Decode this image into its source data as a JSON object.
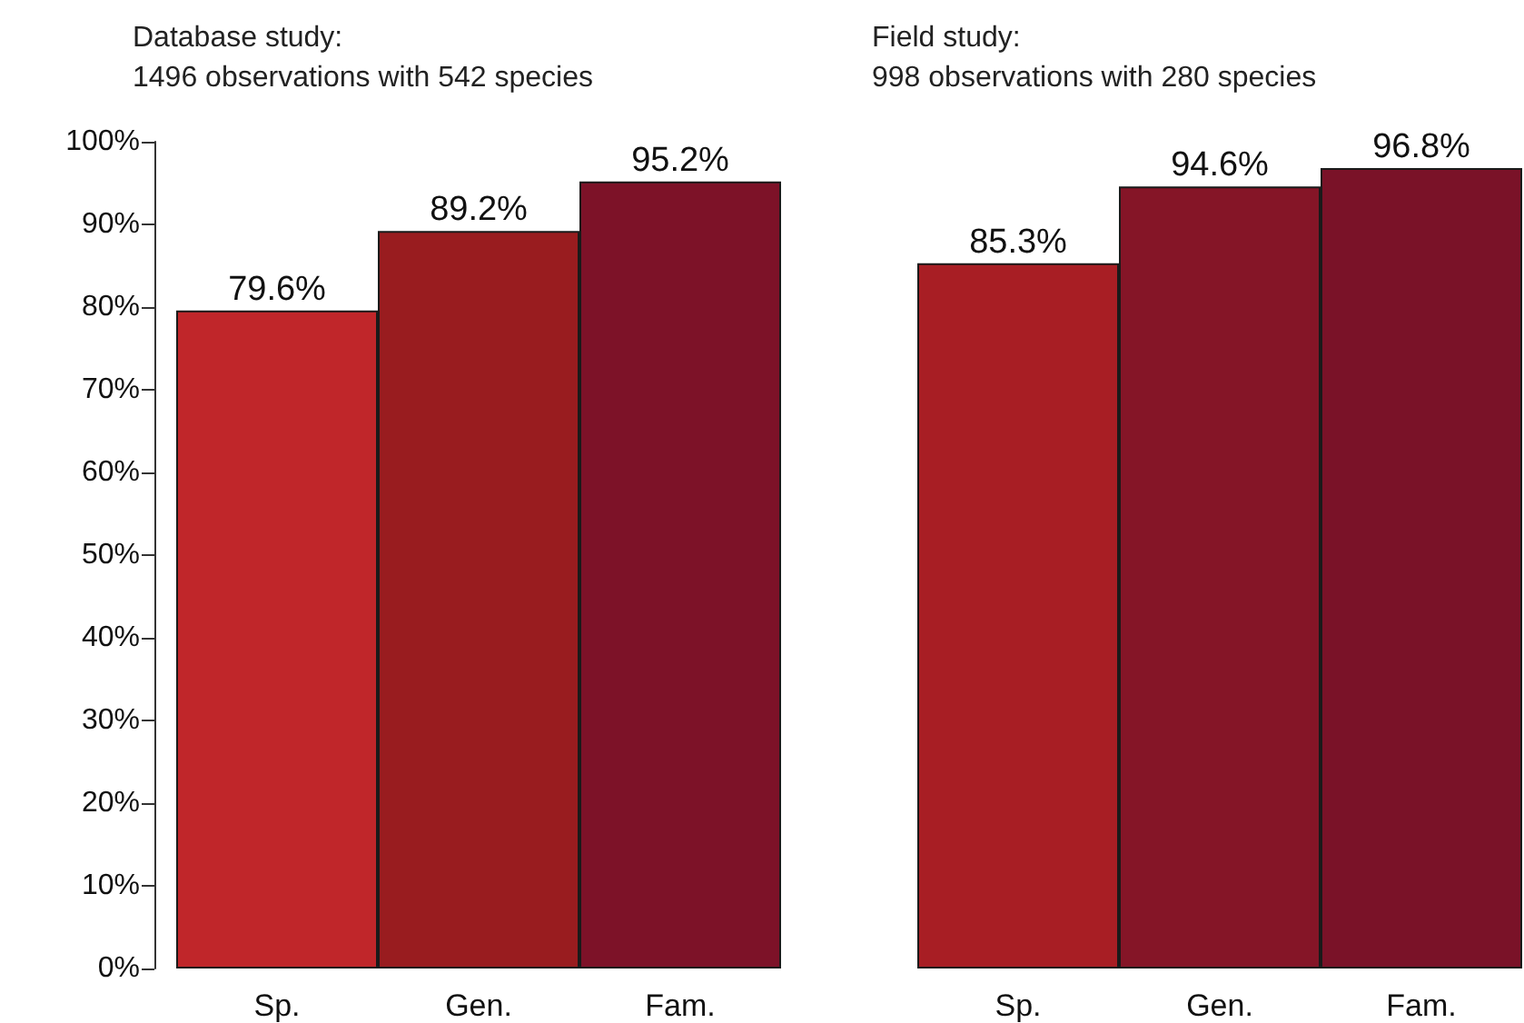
{
  "chart_data": [
    {
      "type": "bar",
      "title": "Database study:",
      "subtitle": "1496 observations with 542 species",
      "categories": [
        "Sp.",
        "Gen.",
        "Fam."
      ],
      "values": [
        79.6,
        89.2,
        95.2
      ],
      "value_labels": [
        "79.6%",
        "89.2%",
        "95.2%"
      ],
      "colors": [
        "#c0262a",
        "#991c1f",
        "#7d1228"
      ],
      "ylim": [
        0,
        100
      ],
      "yticks": [
        {
          "value": 0,
          "label": "0%"
        },
        {
          "value": 10,
          "label": "10%"
        },
        {
          "value": 20,
          "label": "20%"
        },
        {
          "value": 30,
          "label": "30%"
        },
        {
          "value": 40,
          "label": "40%"
        },
        {
          "value": 50,
          "label": "50%"
        },
        {
          "value": 60,
          "label": "60%"
        },
        {
          "value": 70,
          "label": "70%"
        },
        {
          "value": 80,
          "label": "80%"
        },
        {
          "value": 90,
          "label": "90%"
        },
        {
          "value": 100,
          "label": "100%"
        }
      ]
    },
    {
      "type": "bar",
      "title": "Field study:",
      "subtitle": "998 observations with 280 species",
      "categories": [
        "Sp.",
        "Gen.",
        "Fam."
      ],
      "values": [
        85.3,
        94.6,
        96.8
      ],
      "value_labels": [
        "85.3%",
        "94.6%",
        "96.8%"
      ],
      "colors": [
        "#a81e24",
        "#851527",
        "#7a1228"
      ],
      "ylim": [
        0,
        100
      ],
      "tick_labels": "x"
    }
  ]
}
